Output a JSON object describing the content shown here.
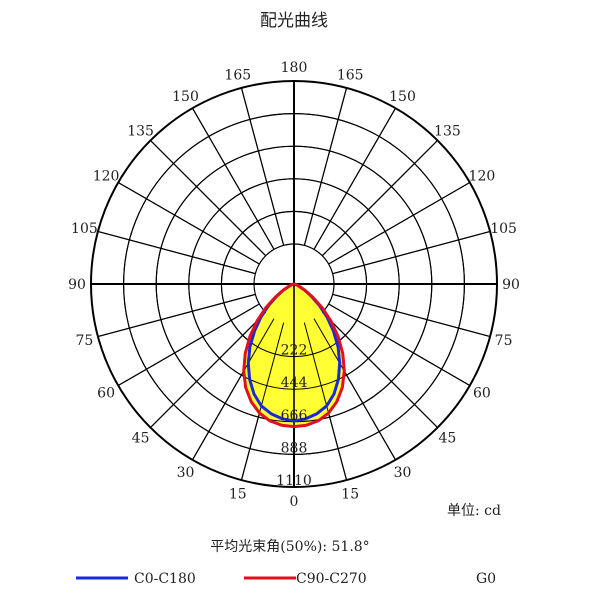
{
  "chart_data": {
    "type": "polar",
    "title": "配光曲线",
    "unit_label": "单位: cd",
    "beam_angle_label": "平均光束角(50%): 51.8°",
    "angle_labels_right": [
      "0",
      "15",
      "30",
      "45",
      "60",
      "75",
      "90",
      "105",
      "120",
      "135",
      "150",
      "165",
      "180"
    ],
    "angle_labels_left": [
      "15",
      "30",
      "45",
      "60",
      "75",
      "90",
      "105",
      "120",
      "135",
      "150",
      "165"
    ],
    "radial_labels": [
      "222",
      "444",
      "666",
      "888",
      "1110"
    ],
    "radial_max": 1110,
    "colors": {
      "fill": "#ffff33",
      "c0": "#1a2ad8",
      "c90": "#e01020",
      "grid": "#000000"
    },
    "series": [
      {
        "name": "C0-C180",
        "color": "#1a2ad8",
        "angles": [
          0,
          5,
          10,
          15,
          20,
          25,
          30,
          35,
          40,
          45,
          50,
          55,
          60,
          70,
          80,
          90
        ],
        "values": [
          748,
          740,
          720,
          690,
          640,
          575,
          500,
          420,
          335,
          255,
          180,
          115,
          65,
          20,
          5,
          0
        ]
      },
      {
        "name": "C90-C270",
        "color": "#e01020",
        "angles": [
          0,
          5,
          10,
          15,
          20,
          25,
          30,
          35,
          40,
          45,
          50,
          55,
          60,
          70,
          80,
          90
        ],
        "values": [
          780,
          775,
          760,
          730,
          685,
          625,
          550,
          465,
          375,
          285,
          200,
          125,
          70,
          22,
          6,
          0
        ]
      }
    ],
    "legend": [
      "C0-C180",
      "C90-C270",
      "G0"
    ]
  }
}
